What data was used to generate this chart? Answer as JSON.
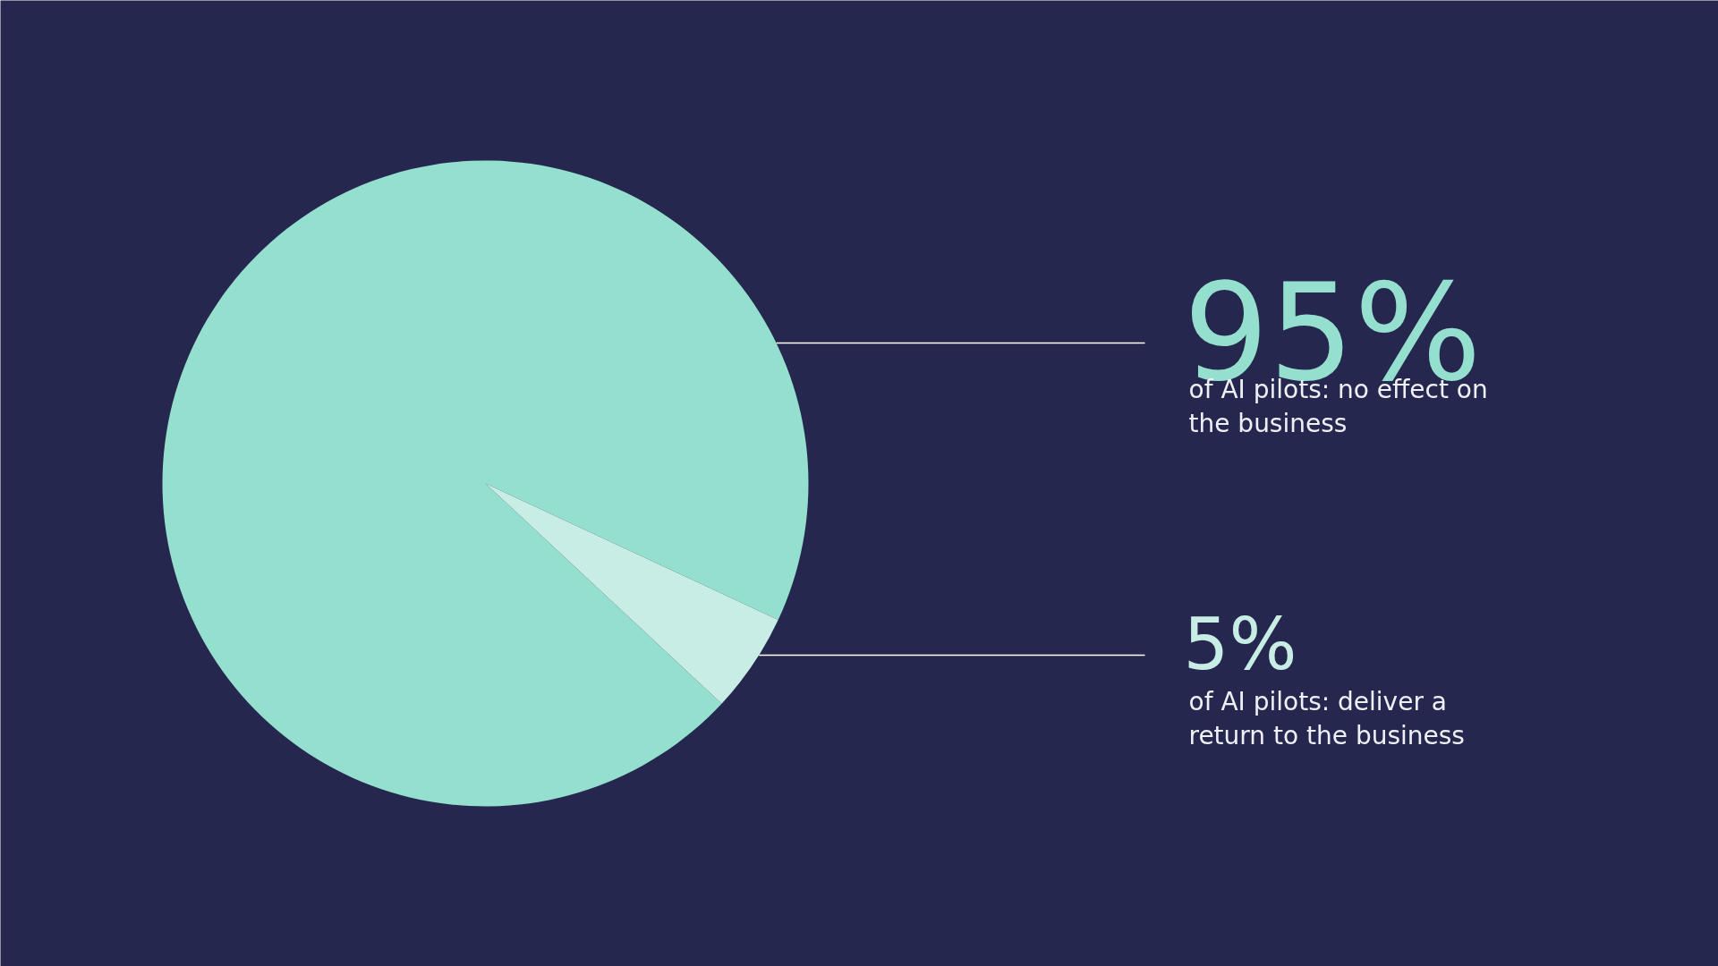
{
  "chart_data": {
    "type": "pie",
    "categories": [
      "of AI pilots: no effect on the business",
      "of AI pilots: deliver a return to the business"
    ],
    "values": [
      95,
      5
    ],
    "colors": [
      "#95dfcf",
      "#c8ede5"
    ],
    "value_labels": [
      "95%",
      "5%"
    ]
  }
}
